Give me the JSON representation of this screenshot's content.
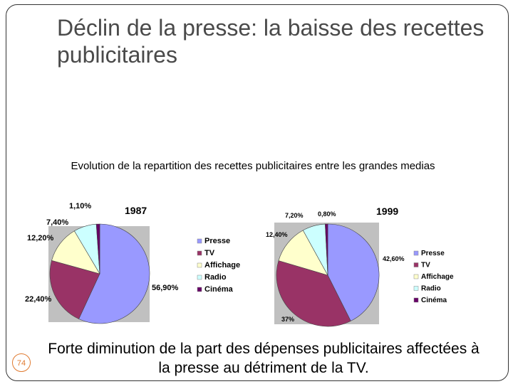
{
  "slide": {
    "title": "Déclin de la presse: la baisse des recettes publicitaires",
    "subtitle": "Evolution de la repartition des recettes publicitaires entre les grandes medias",
    "footer": "Forte diminution de la part des dépenses publicitaires affectées à la presse au détriment de la TV.",
    "page_number": "74"
  },
  "chart_data": [
    {
      "type": "pie",
      "title": "1987",
      "legend_position": "right",
      "slices": [
        {
          "name": "Presse",
          "value": 56.9,
          "label": "56,90%",
          "color": "#9999ff"
        },
        {
          "name": "TV",
          "value": 22.4,
          "label": "22,40%",
          "color": "#993366"
        },
        {
          "name": "Affichage",
          "value": 12.2,
          "label": "12,20%",
          "color": "#ffffcc"
        },
        {
          "name": "Radio",
          "value": 7.4,
          "label": "7,40%",
          "color": "#ccffff"
        },
        {
          "name": "Cinéma",
          "value": 1.1,
          "label": "1,10%",
          "color": "#660066"
        }
      ]
    },
    {
      "type": "pie",
      "title": "1999",
      "legend_position": "right",
      "slices": [
        {
          "name": "Presse",
          "value": 42.6,
          "label": "42,60%",
          "color": "#9999ff"
        },
        {
          "name": "TV",
          "value": 37,
          "label": "37%",
          "color": "#993366"
        },
        {
          "name": "Affichage",
          "value": 12.4,
          "label": "12,40%",
          "color": "#ffffcc"
        },
        {
          "name": "Radio",
          "value": 7.2,
          "label": "7,20%",
          "color": "#ccffff"
        },
        {
          "name": "Cinéma",
          "value": 0.8,
          "label": "0,80%",
          "color": "#660066"
        }
      ]
    }
  ]
}
